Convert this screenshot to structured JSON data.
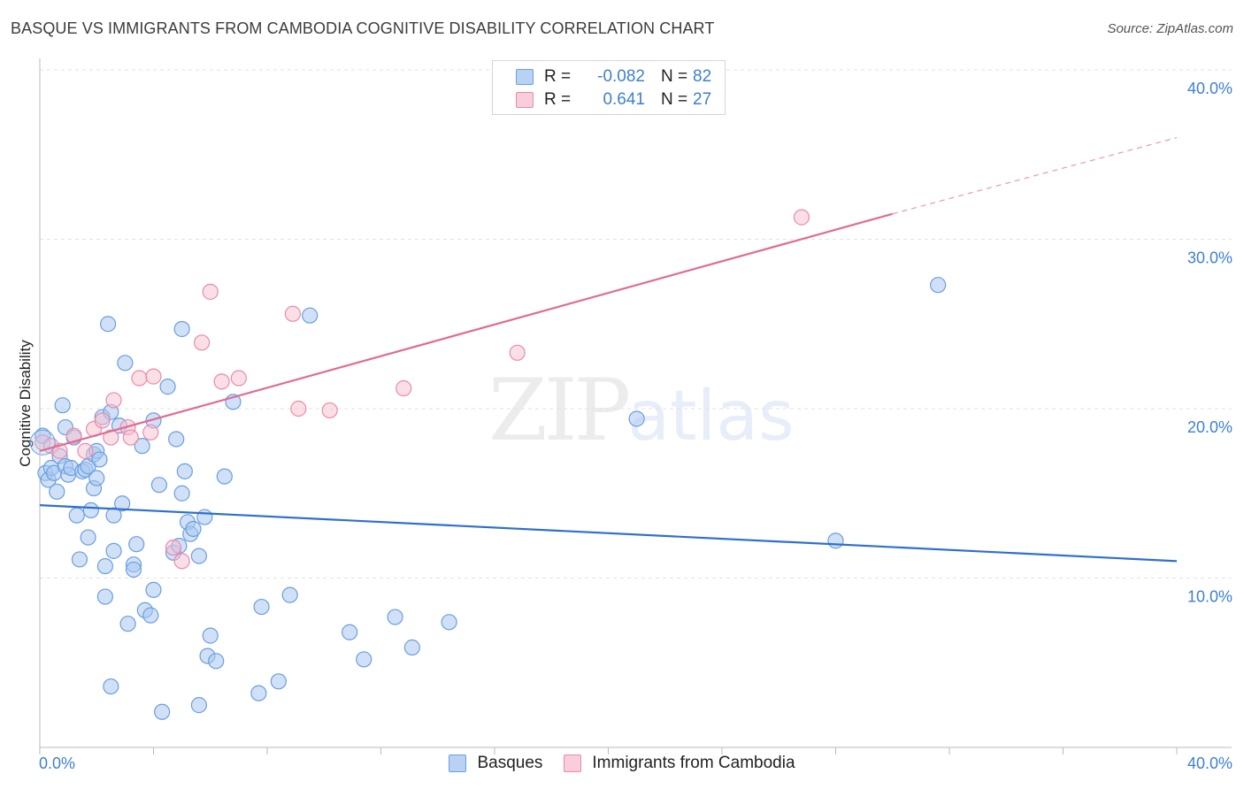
{
  "title": "BASQUE VS IMMIGRANTS FROM CAMBODIA COGNITIVE DISABILITY CORRELATION CHART",
  "source": "Source: ZipAtlas.com",
  "watermark": {
    "zip": "ZIP",
    "atlas": "atlas"
  },
  "legend": {
    "rows": [
      {
        "r_label": "R =",
        "r_value": "-0.082",
        "n_label": "N =",
        "n_value": "82"
      },
      {
        "r_label": "R =",
        "r_value": "0.641",
        "n_label": "N =",
        "n_value": "27"
      }
    ]
  },
  "bottom_legend": {
    "basques": "Basques",
    "cambodia": "Immigrants from Cambodia"
  },
  "colors": {
    "blue_fill": "#a9c8f0",
    "blue_stroke": "#6a9ee0",
    "blue_line": "#2f6fcf",
    "pink_fill": "#f7bfd0",
    "pink_stroke": "#eb8aa8",
    "pink_line": "#e06b95",
    "tick_text": "#3d7fd3",
    "grid": "#e2e2e2"
  },
  "chart_data": {
    "type": "scatter",
    "title": "BASQUE VS IMMIGRANTS FROM CAMBODIA COGNITIVE DISABILITY CORRELATION CHART",
    "xlabel": "",
    "ylabel": "Cognitive Disability",
    "xlim": [
      0,
      40
    ],
    "ylim": [
      0,
      40
    ],
    "x_tick_labels": [
      "0.0%",
      "40.0%"
    ],
    "y_ticks": [
      10,
      20,
      30,
      40
    ],
    "y_tick_labels": [
      "10.0%",
      "20.0%",
      "30.0%",
      "40.0%"
    ],
    "grid": true,
    "legend_position": "top-center",
    "series": [
      {
        "name": "Basques",
        "color": "blue",
        "trend": {
          "x": [
            0,
            40
          ],
          "y": [
            14.3,
            11.0
          ]
        },
        "points": [
          [
            0.1,
            18.4
          ],
          [
            0.2,
            16.2
          ],
          [
            0.3,
            15.8
          ],
          [
            0.4,
            16.5
          ],
          [
            0.5,
            16.2
          ],
          [
            0.6,
            15.1
          ],
          [
            0.7,
            17.2
          ],
          [
            0.8,
            20.2
          ],
          [
            0.9,
            16.6
          ],
          [
            0.9,
            18.9
          ],
          [
            1.0,
            16.1
          ],
          [
            1.1,
            16.5
          ],
          [
            1.2,
            18.3
          ],
          [
            1.3,
            13.7
          ],
          [
            1.4,
            11.1
          ],
          [
            1.5,
            16.3
          ],
          [
            1.6,
            16.4
          ],
          [
            1.7,
            12.4
          ],
          [
            1.7,
            16.6
          ],
          [
            1.8,
            14.0
          ],
          [
            1.9,
            17.3
          ],
          [
            1.9,
            15.3
          ],
          [
            2.0,
            17.5
          ],
          [
            2.0,
            15.9
          ],
          [
            2.1,
            17.0
          ],
          [
            2.2,
            19.5
          ],
          [
            2.3,
            10.7
          ],
          [
            2.3,
            8.9
          ],
          [
            2.4,
            25.0
          ],
          [
            2.5,
            19.8
          ],
          [
            2.5,
            3.6
          ],
          [
            2.6,
            11.6
          ],
          [
            2.6,
            13.7
          ],
          [
            2.8,
            19.0
          ],
          [
            2.9,
            14.4
          ],
          [
            3.0,
            22.7
          ],
          [
            3.1,
            7.3
          ],
          [
            3.3,
            10.8
          ],
          [
            3.3,
            10.5
          ],
          [
            3.4,
            12.0
          ],
          [
            3.6,
            17.8
          ],
          [
            3.7,
            8.1
          ],
          [
            3.9,
            7.8
          ],
          [
            4.0,
            19.3
          ],
          [
            4.0,
            9.3
          ],
          [
            4.2,
            15.5
          ],
          [
            4.3,
            2.1
          ],
          [
            4.5,
            21.3
          ],
          [
            4.7,
            11.5
          ],
          [
            4.8,
            18.2
          ],
          [
            4.9,
            11.9
          ],
          [
            5.0,
            24.7
          ],
          [
            5.0,
            15.0
          ],
          [
            5.1,
            16.3
          ],
          [
            5.2,
            13.3
          ],
          [
            5.3,
            12.6
          ],
          [
            5.4,
            12.9
          ],
          [
            5.6,
            11.3
          ],
          [
            5.6,
            2.5
          ],
          [
            5.8,
            13.6
          ],
          [
            5.9,
            5.4
          ],
          [
            6.0,
            6.6
          ],
          [
            6.2,
            5.1
          ],
          [
            6.5,
            16.0
          ],
          [
            6.8,
            20.4
          ],
          [
            7.7,
            3.2
          ],
          [
            7.8,
            8.3
          ],
          [
            8.4,
            3.9
          ],
          [
            8.8,
            9.0
          ],
          [
            9.5,
            25.5
          ],
          [
            10.9,
            6.8
          ],
          [
            11.4,
            5.2
          ],
          [
            12.5,
            7.7
          ],
          [
            13.1,
            5.9
          ],
          [
            14.4,
            7.4
          ],
          [
            21.0,
            19.4
          ],
          [
            28.0,
            12.2
          ],
          [
            31.6,
            27.3
          ]
        ]
      },
      {
        "name": "Immigrants from Cambodia",
        "color": "pink",
        "trend": {
          "x": [
            0,
            30
          ],
          "y": [
            17.5,
            31.5
          ]
        },
        "trend_dashed": {
          "x": [
            30,
            40
          ],
          "y": [
            31.5,
            36.0
          ]
        },
        "points": [
          [
            0.1,
            18.0
          ],
          [
            0.4,
            17.8
          ],
          [
            0.7,
            17.5
          ],
          [
            1.2,
            18.4
          ],
          [
            1.6,
            17.5
          ],
          [
            1.9,
            18.8
          ],
          [
            2.2,
            19.3
          ],
          [
            2.5,
            18.3
          ],
          [
            2.6,
            20.5
          ],
          [
            3.1,
            18.9
          ],
          [
            3.2,
            18.3
          ],
          [
            3.5,
            21.8
          ],
          [
            3.9,
            18.6
          ],
          [
            4.0,
            21.9
          ],
          [
            4.7,
            11.8
          ],
          [
            5.0,
            11.0
          ],
          [
            5.7,
            23.9
          ],
          [
            6.0,
            26.9
          ],
          [
            6.4,
            21.6
          ],
          [
            7.0,
            21.8
          ],
          [
            8.9,
            25.6
          ],
          [
            9.1,
            20.0
          ],
          [
            10.2,
            19.9
          ],
          [
            12.8,
            21.2
          ],
          [
            16.8,
            23.3
          ],
          [
            26.8,
            31.3
          ]
        ]
      }
    ]
  }
}
